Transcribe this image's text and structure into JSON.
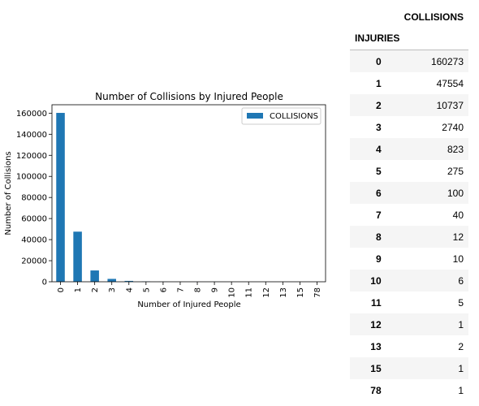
{
  "chart_data": {
    "type": "bar",
    "title": "Number of Collisions by Injured People",
    "xlabel": "Number of Injured People",
    "ylabel": "Number of Collisions",
    "categories": [
      "0",
      "1",
      "2",
      "3",
      "4",
      "5",
      "6",
      "7",
      "8",
      "9",
      "10",
      "11",
      "12",
      "13",
      "15",
      "78"
    ],
    "series": [
      {
        "name": "COLLISIONS",
        "values": [
          160273,
          47554,
          10737,
          2740,
          823,
          275,
          100,
          40,
          12,
          10,
          6,
          5,
          1,
          2,
          1,
          1
        ]
      }
    ],
    "ylim": [
      0,
      168000
    ],
    "yticks": [
      0,
      20000,
      40000,
      60000,
      80000,
      100000,
      120000,
      140000,
      160000
    ],
    "ytick_labels": [
      "0",
      "20000",
      "40000",
      "60000",
      "80000",
      "100000",
      "120000",
      "140000",
      "160000"
    ],
    "legend_position": "top-right",
    "grid": false,
    "bar_color": "#1f77b4"
  },
  "table": {
    "column_header": "COLLISIONS",
    "index_header": "INJURIES",
    "rows": [
      {
        "index": "0",
        "value": "160273"
      },
      {
        "index": "1",
        "value": "47554"
      },
      {
        "index": "2",
        "value": "10737"
      },
      {
        "index": "3",
        "value": "2740"
      },
      {
        "index": "4",
        "value": "823"
      },
      {
        "index": "5",
        "value": "275"
      },
      {
        "index": "6",
        "value": "100"
      },
      {
        "index": "7",
        "value": "40"
      },
      {
        "index": "8",
        "value": "12"
      },
      {
        "index": "9",
        "value": "10"
      },
      {
        "index": "10",
        "value": "6"
      },
      {
        "index": "11",
        "value": "5"
      },
      {
        "index": "12",
        "value": "1"
      },
      {
        "index": "13",
        "value": "2"
      },
      {
        "index": "15",
        "value": "1"
      },
      {
        "index": "78",
        "value": "1"
      }
    ]
  }
}
